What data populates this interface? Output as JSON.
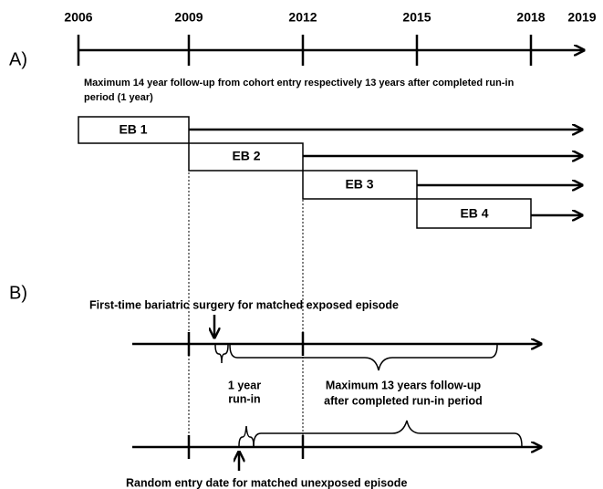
{
  "timeline": {
    "years": [
      "2006",
      "2009",
      "2012",
      "2015",
      "2018",
      "2019"
    ]
  },
  "panel_a": {
    "label": "A)",
    "note_lines": [
      "Maximum  14 year follow-up  from cohort entry respectively 13 years after completed run-in",
      "period (1 year)"
    ],
    "episodes": [
      "EB 1",
      "EB 2",
      "EB 3",
      "EB 4"
    ]
  },
  "panel_b": {
    "label": "B)",
    "exposed_label": "First-time bariatric surgery for matched exposed episode",
    "runin_lines": [
      "1 year",
      "run-in"
    ],
    "followup_lines": [
      "Maximum 13 years follow-up",
      "after completed run-in period"
    ],
    "unexposed_label": "Random entry date for matched unexposed episode"
  }
}
